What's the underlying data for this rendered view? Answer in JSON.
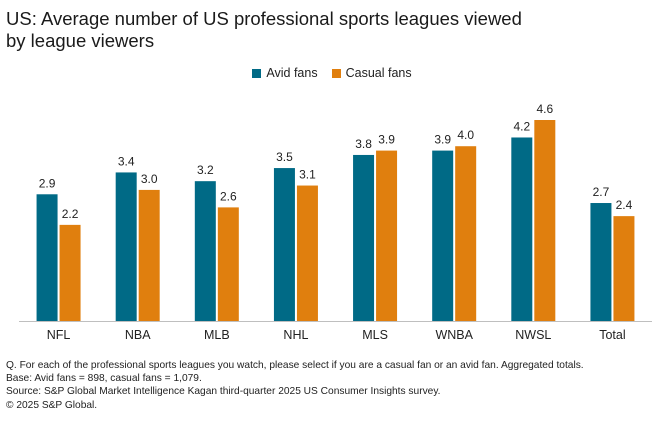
{
  "title_line1": "US: Average number of US professional sports leagues viewed",
  "title_line2": "by league viewers",
  "chart_data": {
    "type": "bar",
    "title": "US: Average number of US professional sports leagues viewed by league viewers",
    "categories": [
      "NFL",
      "NBA",
      "MLB",
      "NHL",
      "MLS",
      "WNBA",
      "NWSL",
      "Total"
    ],
    "series": [
      {
        "name": "Avid fans",
        "color": "#006a86",
        "values": [
          2.9,
          3.4,
          3.2,
          3.5,
          3.8,
          3.9,
          4.2,
          2.7
        ],
        "labels": [
          "2.9",
          "3.4",
          "3.2",
          "3.5",
          "3.8",
          "3.9",
          "4.2",
          "2.7"
        ]
      },
      {
        "name": "Casual fans",
        "color": "#e07f0e",
        "values": [
          2.2,
          3.0,
          2.6,
          3.1,
          3.9,
          4.0,
          4.6,
          2.4
        ],
        "labels": [
          "2.2",
          "3.0",
          "2.6",
          "3.1",
          "3.9",
          "4.0",
          "4.6",
          "2.4"
        ]
      }
    ],
    "xlabel": "",
    "ylabel": "",
    "ylim": [
      0,
      4.6
    ],
    "grid": false,
    "legend": "top-center"
  },
  "notes": {
    "question": "Q. For each of the professional sports leagues you watch, please select if you are a casual fan or an avid fan. Aggregated totals.",
    "base": "Base: Avid fans = 898, casual fans = 1,079.",
    "source": "Source: S&P Global Market Intelligence Kagan third-quarter 2025 US Consumer Insights survey.",
    "copyright": "© 2025 S&P Global."
  }
}
